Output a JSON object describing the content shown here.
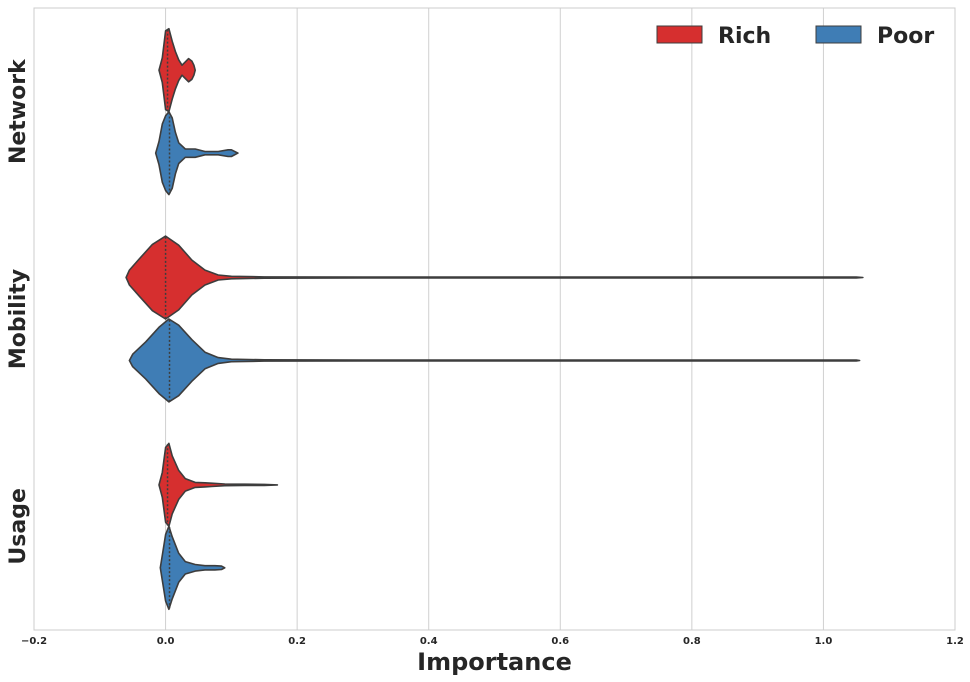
{
  "chart_data": {
    "type": "violin",
    "orientation": "horizontal",
    "xlabel": "Importance",
    "ylabel": "",
    "xlim": [
      -0.2,
      1.2
    ],
    "xticks": [
      -0.2,
      0.0,
      0.2,
      0.4,
      0.6,
      0.8,
      1.0,
      1.2
    ],
    "xtick_labels": [
      "−0.2",
      "0.0",
      "0.2",
      "0.4",
      "0.6",
      "0.8",
      "1.0",
      "1.2"
    ],
    "grid": "vertical",
    "legend_position": "top-right",
    "categories": [
      "Network",
      "Mobility",
      "Usage"
    ],
    "series": [
      {
        "name": "Rich",
        "color": "#d62f2f",
        "violins": [
          {
            "category": "Network",
            "min": -0.01,
            "max": 0.045,
            "center": 0.003,
            "profile": [
              [
                -0.01,
                0.0
              ],
              [
                -0.005,
                0.3
              ],
              [
                0.0,
                0.95
              ],
              [
                0.005,
                1.0
              ],
              [
                0.01,
                0.7
              ],
              [
                0.015,
                0.45
              ],
              [
                0.02,
                0.25
              ],
              [
                0.025,
                0.12
              ],
              [
                0.03,
                0.2
              ],
              [
                0.035,
                0.28
              ],
              [
                0.04,
                0.22
              ],
              [
                0.043,
                0.12
              ],
              [
                0.045,
                0.0
              ]
            ]
          },
          {
            "category": "Mobility",
            "min": -0.06,
            "max": 1.06,
            "center": 0.0,
            "profile": [
              [
                -0.06,
                0.0
              ],
              [
                -0.055,
                0.18
              ],
              [
                -0.04,
                0.45
              ],
              [
                -0.02,
                0.8
              ],
              [
                0.0,
                1.0
              ],
              [
                0.02,
                0.78
              ],
              [
                0.04,
                0.42
              ],
              [
                0.06,
                0.18
              ],
              [
                0.08,
                0.06
              ],
              [
                0.1,
                0.03
              ],
              [
                0.15,
                0.015
              ],
              [
                0.3,
                0.01
              ],
              [
                0.6,
                0.01
              ],
              [
                0.9,
                0.01
              ],
              [
                1.05,
                0.01
              ],
              [
                1.06,
                0.0
              ]
            ]
          },
          {
            "category": "Usage",
            "min": -0.01,
            "max": 0.17,
            "center": 0.003,
            "profile": [
              [
                -0.01,
                0.0
              ],
              [
                -0.005,
                0.3
              ],
              [
                0.0,
                0.9
              ],
              [
                0.005,
                1.0
              ],
              [
                0.01,
                0.7
              ],
              [
                0.02,
                0.35
              ],
              [
                0.03,
                0.15
              ],
              [
                0.045,
                0.06
              ],
              [
                0.06,
                0.05
              ],
              [
                0.07,
                0.04
              ],
              [
                0.09,
                0.02
              ],
              [
                0.12,
                0.015
              ],
              [
                0.15,
                0.012
              ],
              [
                0.17,
                0.0
              ]
            ]
          }
        ]
      },
      {
        "name": "Poor",
        "color": "#3f7db5",
        "violins": [
          {
            "category": "Network",
            "min": -0.015,
            "max": 0.11,
            "center": 0.006,
            "profile": [
              [
                -0.015,
                0.0
              ],
              [
                -0.01,
                0.28
              ],
              [
                -0.005,
                0.7
              ],
              [
                0.0,
                0.9
              ],
              [
                0.005,
                1.0
              ],
              [
                0.01,
                0.85
              ],
              [
                0.015,
                0.5
              ],
              [
                0.02,
                0.25
              ],
              [
                0.03,
                0.1
              ],
              [
                0.045,
                0.1
              ],
              [
                0.06,
                0.04
              ],
              [
                0.08,
                0.04
              ],
              [
                0.095,
                0.08
              ],
              [
                0.1,
                0.08
              ],
              [
                0.11,
                0.0
              ]
            ]
          },
          {
            "category": "Mobility",
            "min": -0.055,
            "max": 1.055,
            "center": 0.006,
            "profile": [
              [
                -0.055,
                0.0
              ],
              [
                -0.05,
                0.15
              ],
              [
                -0.03,
                0.45
              ],
              [
                -0.01,
                0.8
              ],
              [
                0.005,
                1.0
              ],
              [
                0.02,
                0.85
              ],
              [
                0.04,
                0.5
              ],
              [
                0.06,
                0.2
              ],
              [
                0.08,
                0.07
              ],
              [
                0.1,
                0.03
              ],
              [
                0.15,
                0.015
              ],
              [
                0.3,
                0.01
              ],
              [
                0.6,
                0.01
              ],
              [
                0.9,
                0.01
              ],
              [
                1.05,
                0.01
              ],
              [
                1.055,
                0.0
              ]
            ]
          },
          {
            "category": "Usage",
            "min": -0.008,
            "max": 0.09,
            "center": 0.006,
            "profile": [
              [
                -0.008,
                0.0
              ],
              [
                -0.005,
                0.3
              ],
              [
                0.0,
                0.8
              ],
              [
                0.005,
                1.0
              ],
              [
                0.01,
                0.75
              ],
              [
                0.02,
                0.35
              ],
              [
                0.03,
                0.15
              ],
              [
                0.045,
                0.08
              ],
              [
                0.06,
                0.05
              ],
              [
                0.075,
                0.05
              ],
              [
                0.085,
                0.04
              ],
              [
                0.09,
                0.0
              ]
            ]
          }
        ]
      }
    ]
  }
}
